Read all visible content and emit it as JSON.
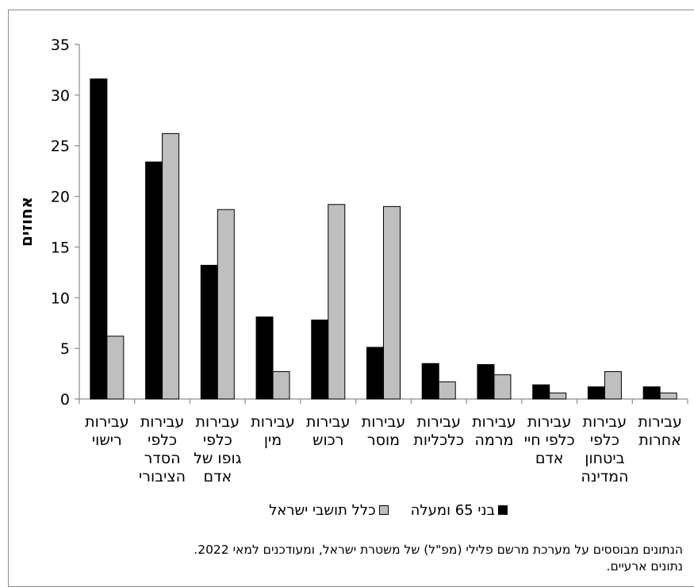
{
  "chart_data": {
    "type": "bar",
    "ylabel": "אחוזים",
    "ylim": [
      0,
      35
    ],
    "yticks": [
      0,
      5,
      10,
      15,
      20,
      25,
      30,
      35
    ],
    "categories": [
      "עבירות רישוי",
      "עבירות כלפי הסדר הציבורי",
      "עבירות כלפי גופו של אדם",
      "עבירות מין",
      "עבירות רכוש",
      "עבירות מוסר",
      "עבירות כלכליות",
      "עבירות מרמה",
      "עבירות כלפי חיי אדם",
      "עבירות כלפי ביטחון המדינה",
      "עבירות אחרות"
    ],
    "category_lines": [
      "עבירות\nרישוי",
      "עבירות\nכלפי\nהסדר\nהציבורי",
      "עבירות\nכלפי\nגופו של\nאדם",
      "עבירות\nמין",
      "עבירות\nרכוש",
      "עבירות\nמוסר",
      "עבירות\nכלכליות",
      "עבירות\nמרמה",
      "עבירות\nכלפי חיי\nאדם",
      "עבירות\nכלפי\nביטחון\nהמדינה",
      "עבירות\nאחרות"
    ],
    "series": [
      {
        "name": "בני 65 ומעלה",
        "color": "#000000",
        "values": [
          31.6,
          23.4,
          13.2,
          8.1,
          7.8,
          5.1,
          3.5,
          3.4,
          1.4,
          1.2,
          1.2
        ]
      },
      {
        "name": "כלל תושבי ישראל",
        "color": "#bfbfbf",
        "values": [
          6.2,
          26.2,
          18.7,
          2.7,
          19.2,
          19.0,
          1.7,
          2.4,
          0.6,
          2.7,
          0.6
        ]
      }
    ],
    "legend_position": "bottom",
    "grid": false
  },
  "footnote": {
    "line1": "הנתונים מבוססים על מערכת מרשם פלילי (מפ\"ל) של משטרת ישראל, ומעודכנים למאי 2022.",
    "line2": "נתונים ארעיים."
  }
}
